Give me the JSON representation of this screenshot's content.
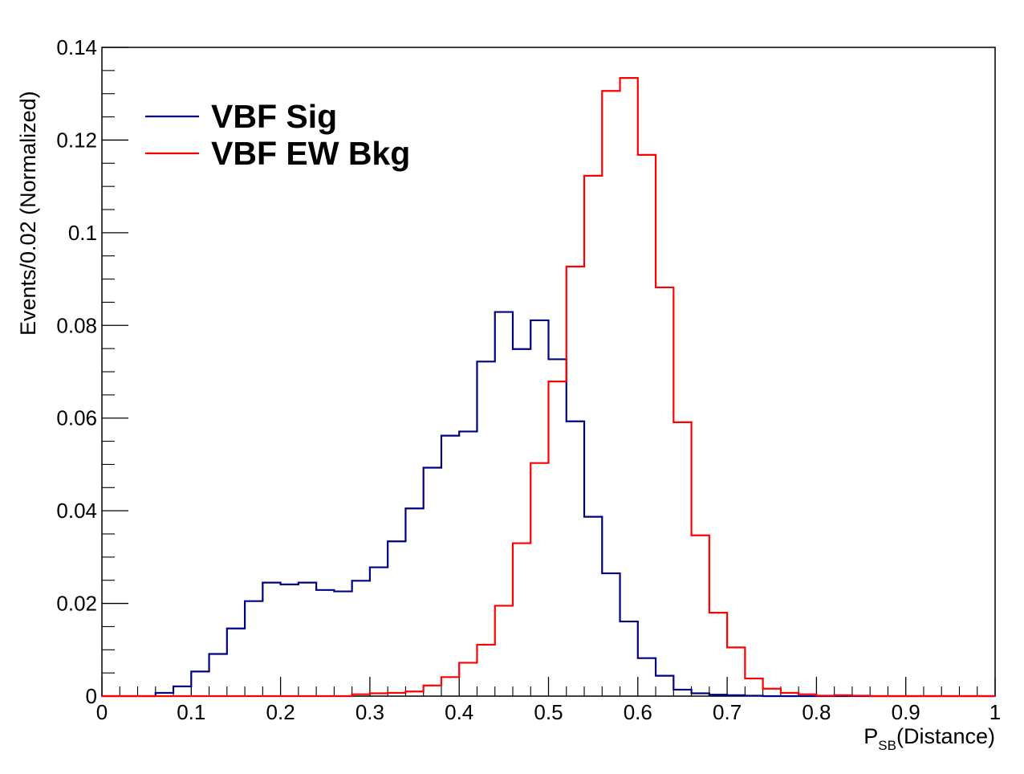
{
  "chart_data": {
    "type": "histogram",
    "title": "",
    "xlabel": {
      "main": "P",
      "subscript": "SB",
      "suffix": "(Distance)"
    },
    "ylabel": "Events/0.02 (Normalized)",
    "xlim": [
      0,
      1
    ],
    "ylim": [
      0,
      0.14
    ],
    "bin_width": 0.02,
    "x_ticks": [
      0,
      0.1,
      0.2,
      0.3,
      0.4,
      0.5,
      0.6,
      0.7,
      0.8,
      0.9,
      1
    ],
    "x_tick_labels": [
      "0",
      "0.1",
      "0.2",
      "0.3",
      "0.4",
      "0.5",
      "0.6",
      "0.7",
      "0.8",
      "0.9",
      "1"
    ],
    "y_ticks": [
      0,
      0.02,
      0.04,
      0.06,
      0.08,
      0.1,
      0.12,
      0.14
    ],
    "y_tick_labels": [
      "0",
      "0.02",
      "0.04",
      "0.06",
      "0.08",
      "0.1",
      "0.12",
      "0.14"
    ],
    "grid": false,
    "legend_position": "top-left",
    "series": [
      {
        "name": "VBF Sig",
        "color": "#000080",
        "values": [
          0,
          0,
          0,
          0.0007,
          0.0021,
          0.0053,
          0.0091,
          0.0146,
          0.0205,
          0.0245,
          0.0241,
          0.0245,
          0.0229,
          0.0226,
          0.0249,
          0.0278,
          0.0334,
          0.0405,
          0.0493,
          0.0562,
          0.0571,
          0.0722,
          0.0829,
          0.0749,
          0.0811,
          0.0727,
          0.0593,
          0.0387,
          0.0265,
          0.0161,
          0.0082,
          0.0044,
          0.0014,
          0.0006,
          0.0003,
          0.0002,
          0.0001,
          0,
          0,
          0,
          0,
          0,
          0,
          0,
          0,
          0,
          0,
          0,
          0,
          0
        ]
      },
      {
        "name": "VBF EW Bkg",
        "color": "#ff0000",
        "values": [
          0,
          0,
          0,
          0,
          0,
          0,
          0,
          0,
          0,
          0,
          0,
          0,
          0,
          0,
          0.0004,
          0.0006,
          0.0007,
          0.001,
          0.0023,
          0.0041,
          0.0072,
          0.0111,
          0.0195,
          0.033,
          0.0503,
          0.0679,
          0.0927,
          0.1123,
          0.1306,
          0.1334,
          0.1168,
          0.0882,
          0.0591,
          0.0347,
          0.018,
          0.0105,
          0.0038,
          0.0016,
          0.0007,
          0.0004,
          0.0001,
          0.0002,
          0.0001,
          0,
          0,
          0,
          0,
          0,
          0,
          0
        ]
      }
    ]
  }
}
